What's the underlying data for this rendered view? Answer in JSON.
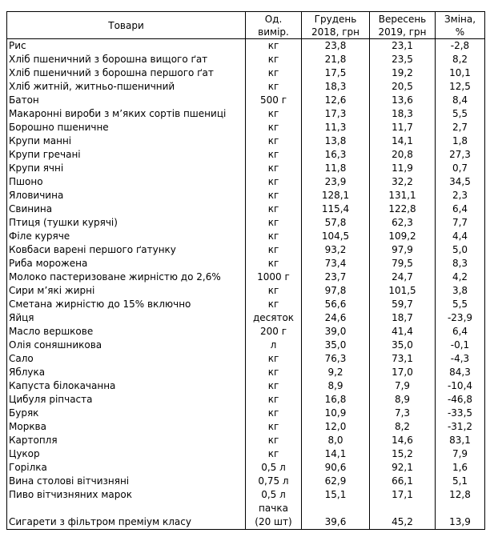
{
  "header": {
    "product": "Товари",
    "unit_line1": "Од.",
    "unit_line2": "вимір.",
    "dec_line1": "Грудень",
    "dec_line2": "2018, грн",
    "sep_line1": "Вересень",
    "sep_line2": "2019, грн",
    "change_line1": "Зміна,",
    "change_line2": "%"
  },
  "rows": [
    {
      "name": "Рис",
      "unit": "кг",
      "dec": "23,8",
      "sep": "23,1",
      "change": "-2,8"
    },
    {
      "name": "Хліб пшеничний з борошна вищого ґат",
      "unit": "кг",
      "dec": "21,8",
      "sep": "23,5",
      "change": "8,2"
    },
    {
      "name": "Хліб пшеничний з борошна першого ґат",
      "unit": "кг",
      "dec": "17,5",
      "sep": "19,2",
      "change": "10,1"
    },
    {
      "name": "Хліб житній, житньо-пшеничний",
      "unit": "кг",
      "dec": "18,3",
      "sep": "20,5",
      "change": "12,5"
    },
    {
      "name": "Батон",
      "unit": "500 г",
      "dec": "12,6",
      "sep": "13,6",
      "change": "8,4"
    },
    {
      "name": "Макаронні вироби з м’яких сортів пшениці",
      "unit": "кг",
      "dec": "17,3",
      "sep": "18,3",
      "change": "5,5"
    },
    {
      "name": "Борошно пшеничне",
      "unit": "кг",
      "dec": "11,3",
      "sep": "11,7",
      "change": "2,7"
    },
    {
      "name": "Крупи манні",
      "unit": "кг",
      "dec": "13,8",
      "sep": "14,1",
      "change": "1,8"
    },
    {
      "name": "Крупи гречані",
      "unit": "кг",
      "dec": "16,3",
      "sep": "20,8",
      "change": "27,3"
    },
    {
      "name": "Крупи ячні",
      "unit": "кг",
      "dec": "11,8",
      "sep": "11,9",
      "change": "0,7"
    },
    {
      "name": "Пшоно",
      "unit": "кг",
      "dec": "23,9",
      "sep": "32,2",
      "change": "34,5"
    },
    {
      "name": "Яловичина",
      "unit": "кг",
      "dec": "128,1",
      "sep": "131,1",
      "change": "2,3"
    },
    {
      "name": "Свинина",
      "unit": "кг",
      "dec": "115,4",
      "sep": "122,8",
      "change": "6,4"
    },
    {
      "name": "Птиця (тушки курячі)",
      "unit": "кг",
      "dec": "57,8",
      "sep": "62,3",
      "change": "7,7"
    },
    {
      "name": "Філе куряче",
      "unit": "кг",
      "dec": "104,5",
      "sep": "109,2",
      "change": "4,4"
    },
    {
      "name": "Ковбаси варені першого ґатунку",
      "unit": "кг",
      "dec": "93,2",
      "sep": "97,9",
      "change": "5,0"
    },
    {
      "name": "Риба морожена",
      "unit": "кг",
      "dec": "73,4",
      "sep": "79,5",
      "change": "8,3"
    },
    {
      "name": "Молоко пастеризоване жирністю до 2,6%",
      "unit": "1000 г",
      "dec": "23,7",
      "sep": "24,7",
      "change": "4,2"
    },
    {
      "name": "Сири м’які жирні",
      "unit": "кг",
      "dec": "97,8",
      "sep": "101,5",
      "change": "3,8"
    },
    {
      "name": "Сметана жирністю до 15% включно",
      "unit": "кг",
      "dec": "56,6",
      "sep": "59,7",
      "change": "5,5"
    },
    {
      "name": "Яйця",
      "unit": "десяток",
      "dec": "24,6",
      "sep": "18,7",
      "change": "-23,9"
    },
    {
      "name": "Масло вершкове",
      "unit": "200 г",
      "dec": "39,0",
      "sep": "41,4",
      "change": "6,4"
    },
    {
      "name": "Олія соняшникова",
      "unit": "л",
      "dec": "35,0",
      "sep": "35,0",
      "change": "-0,1"
    },
    {
      "name": "Сало",
      "unit": "кг",
      "dec": "76,3",
      "sep": "73,1",
      "change": "-4,3"
    },
    {
      "name": "Яблука",
      "unit": "кг",
      "dec": "9,2",
      "sep": "17,0",
      "change": "84,3"
    },
    {
      "name": "Капуста білокачанна",
      "unit": "кг",
      "dec": "8,9",
      "sep": "7,9",
      "change": "-10,4"
    },
    {
      "name": "Цибуля ріпчаста",
      "unit": "кг",
      "dec": "16,8",
      "sep": "8,9",
      "change": "-46,8"
    },
    {
      "name": "Буряк",
      "unit": "кг",
      "dec": "10,9",
      "sep": "7,3",
      "change": "-33,5"
    },
    {
      "name": "Морква",
      "unit": "кг",
      "dec": "12,0",
      "sep": "8,2",
      "change": "-31,2"
    },
    {
      "name": "Картопля",
      "unit": "кг",
      "dec": "8,0",
      "sep": "14,6",
      "change": "83,1"
    },
    {
      "name": "Цукор",
      "unit": "кг",
      "dec": "14,1",
      "sep": "15,2",
      "change": "7,9"
    },
    {
      "name": "Горілка",
      "unit": "0,5 л",
      "dec": "90,6",
      "sep": "92,1",
      "change": "1,6"
    },
    {
      "name": "Вина столові вітчизняні",
      "unit": "0,75 л",
      "dec": "62,9",
      "sep": "66,1",
      "change": "5,1"
    },
    {
      "name": "Пиво вітчизняних марок",
      "unit": "0,5 л",
      "dec": "15,1",
      "sep": "17,1",
      "change": "12,8"
    }
  ],
  "last_row": {
    "name": "Сигарети з фільтром преміум класу",
    "unit_line1": "пачка",
    "unit_line2": "(20 шт)",
    "dec": "39,6",
    "sep": "45,2",
    "change": "13,9"
  }
}
